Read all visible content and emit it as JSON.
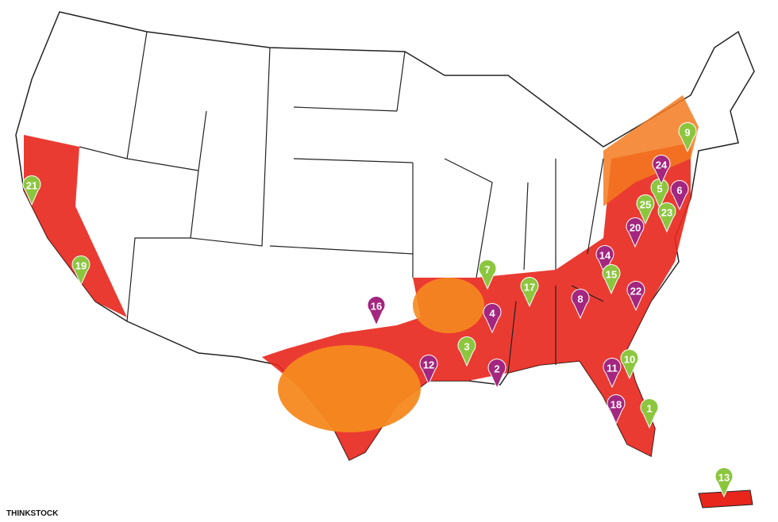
{
  "markers": [
    {
      "label": "1",
      "color": "#8cc63f"
    },
    {
      "label": "2",
      "color": "#a3267f"
    },
    {
      "label": "3",
      "color": "#8cc63f"
    },
    {
      "label": "4",
      "color": "#a3267f"
    },
    {
      "label": "5",
      "color": "#8cc63f"
    },
    {
      "label": "6",
      "color": "#a3267f"
    },
    {
      "label": "7",
      "color": "#8cc63f"
    },
    {
      "label": "8",
      "color": "#a3267f"
    },
    {
      "label": "9",
      "color": "#8cc63f"
    },
    {
      "label": "10",
      "color": "#8cc63f"
    },
    {
      "label": "11",
      "color": "#a3267f"
    },
    {
      "label": "12",
      "color": "#a3267f"
    },
    {
      "label": "13",
      "color": "#8cc63f"
    },
    {
      "label": "14",
      "color": "#a3267f"
    },
    {
      "label": "15",
      "color": "#8cc63f"
    },
    {
      "label": "16",
      "color": "#a3267f"
    },
    {
      "label": "17",
      "color": "#8cc63f"
    },
    {
      "label": "18",
      "color": "#a3267f"
    },
    {
      "label": "19",
      "color": "#8cc63f"
    },
    {
      "label": "20",
      "color": "#a3267f"
    },
    {
      "label": "21",
      "color": "#8cc63f"
    },
    {
      "label": "22",
      "color": "#a3267f"
    },
    {
      "label": "23",
      "color": "#8cc63f"
    },
    {
      "label": "24",
      "color": "#a3267f"
    },
    {
      "label": "25",
      "color": "#8cc63f"
    }
  ],
  "credit": "THINKSTOCK"
}
